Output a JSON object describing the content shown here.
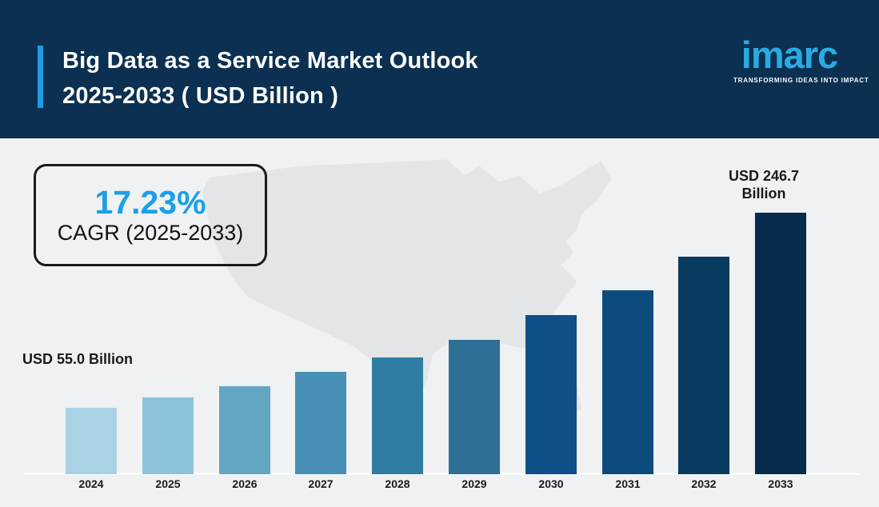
{
  "header": {
    "title_line1": "Big Data as a Service Market Outlook",
    "title_line2": "2025-2033 ( USD Billion )",
    "logo_text": "imarc",
    "logo_tagline": "TRANSFORMING IDEAS INTO IMPACT"
  },
  "cagr_box": {
    "value": "17.23%",
    "label": "CAGR (2025-2033)"
  },
  "annotations": {
    "start_value_label": "USD 55.0 Billion",
    "end_value_label_line1": "USD 246.7",
    "end_value_label_line2": "Billion"
  },
  "colors": {
    "header_bg": "#0b3051",
    "accent_blue": "#1e9ce4",
    "logo_blue": "#29abe2",
    "cagr_value_blue": "#1b9fe8",
    "body_bg": "#eff1f2",
    "map_gray": "#e3e5e6",
    "text_dark": "#1a1a1a",
    "bar_colors": [
      "#a9d3e5",
      "#8bc2da",
      "#62a6c2",
      "#478fb4",
      "#2f7da3",
      "#2e6f96",
      "#0e4f87",
      "#0d4a7e",
      "#0a3b60",
      "#062b4c"
    ]
  },
  "chart_data": {
    "type": "bar",
    "title": "Big Data as a Service Market Outlook 2025-2033 ( USD Billion )",
    "unit": "USD Billion",
    "categories": [
      "2024",
      "2025",
      "2026",
      "2027",
      "2028",
      "2029",
      "2030",
      "2031",
      "2032",
      "2033"
    ],
    "values": [
      55.0,
      65.2,
      76.2,
      90.4,
      104.5,
      121.8,
      146.1,
      170.5,
      203.5,
      246.7
    ],
    "values_note": "Only 2024 (USD 55.0 Billion) and 2033 (USD 246.7 Billion) are labeled; intermediate values estimated from bar heights",
    "labeled_points": {
      "2024": "USD 55.0 Billion",
      "2033": "USD 246.7 Billion"
    },
    "cagr": "17.23%",
    "cagr_period": "2025-2033",
    "xlabel": "",
    "ylabel": "",
    "ylim": [
      0,
      250
    ],
    "grid": false,
    "legend": false,
    "background_art": "light gray USA map silhouette"
  }
}
